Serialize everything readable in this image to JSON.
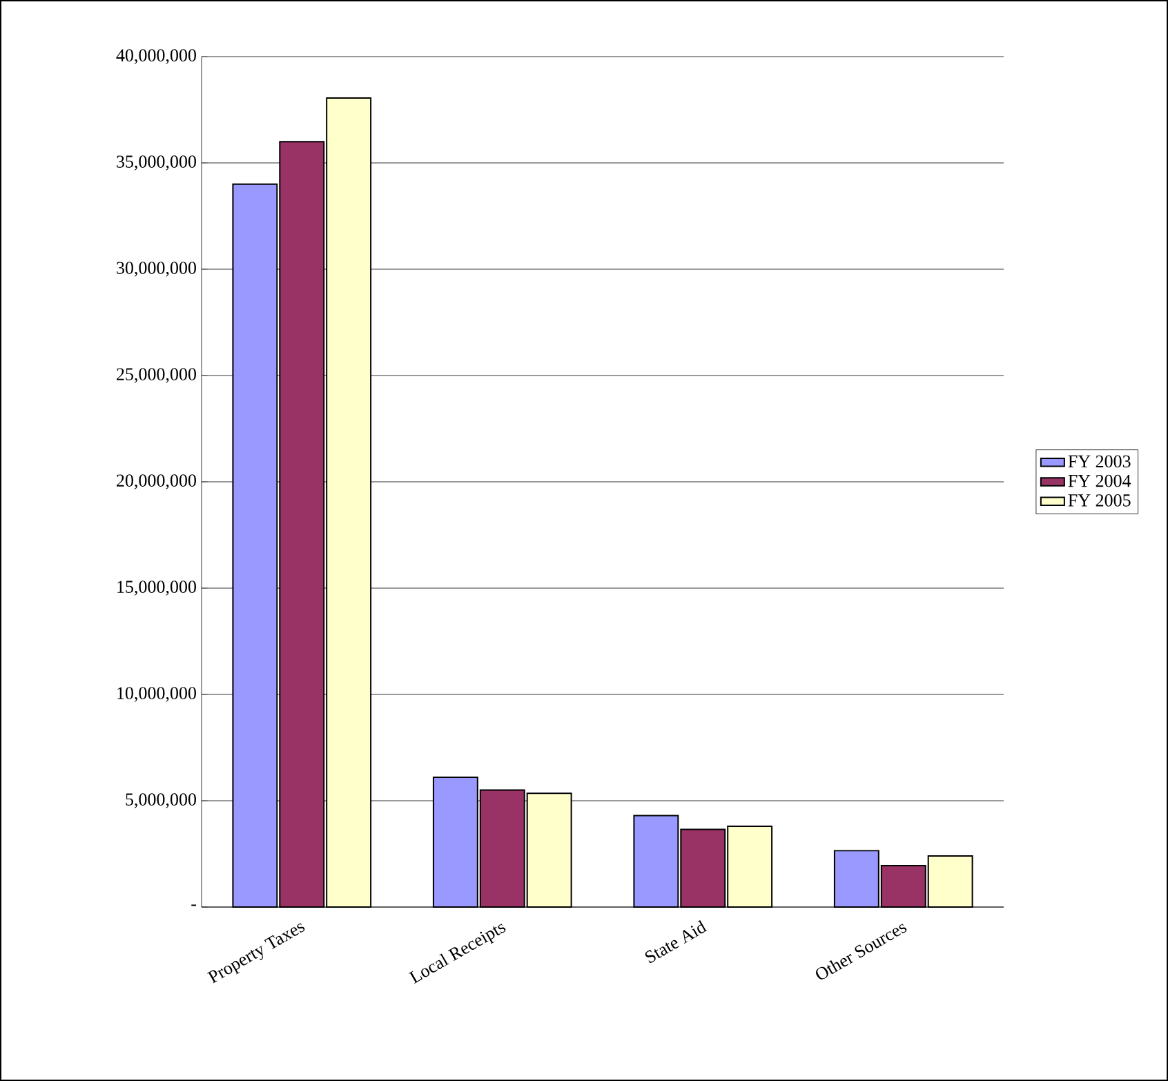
{
  "chart_data": {
    "type": "bar",
    "categories": [
      "Property Taxes",
      "Local Receipts",
      "State Aid",
      "Other Sources"
    ],
    "series": [
      {
        "name": "FY 2003",
        "color": "#9999ff",
        "values": [
          34000000,
          6100000,
          4300000,
          2650000
        ]
      },
      {
        "name": "FY 2004",
        "color": "#993366",
        "values": [
          36000000,
          5500000,
          3650000,
          1950000
        ]
      },
      {
        "name": "FY 2005",
        "color": "#ffffcc",
        "values": [
          38050000,
          5350000,
          3800000,
          2400000
        ]
      }
    ],
    "ylim": [
      0,
      40000000
    ],
    "yticks": [
      {
        "value": 0,
        "label": "-"
      },
      {
        "value": 5000000,
        "label": "5,000,000"
      },
      {
        "value": 10000000,
        "label": "10,000,000"
      },
      {
        "value": 15000000,
        "label": "15,000,000"
      },
      {
        "value": 20000000,
        "label": "20,000,000"
      },
      {
        "value": 25000000,
        "label": "25,000,000"
      },
      {
        "value": 30000000,
        "label": "30,000,000"
      },
      {
        "value": 35000000,
        "label": "35,000,000"
      },
      {
        "value": 40000000,
        "label": "40,000,000"
      }
    ],
    "grid": "y",
    "legend": "right"
  }
}
